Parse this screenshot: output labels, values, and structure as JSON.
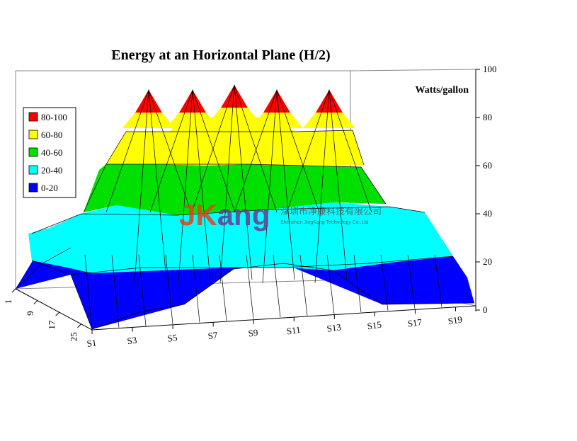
{
  "chart_data": {
    "type": "surface",
    "title": "Energy at an Horizontal Plane (H/2)",
    "zlabel": "Watts/gallon",
    "zlim": [
      0,
      100
    ],
    "z_ticks": [
      "0",
      "20",
      "40",
      "60",
      "80",
      "100"
    ],
    "x_ticks": [
      "S1",
      "S3",
      "S5",
      "S7",
      "S9",
      "S11",
      "S13",
      "S15",
      "S17",
      "S19"
    ],
    "y_ticks": [
      "1",
      "9",
      "17",
      "25"
    ],
    "legend": [
      {
        "label": "80-100",
        "color": "#ff0000"
      },
      {
        "label": "60-80",
        "color": "#ffff00"
      },
      {
        "label": "40-60",
        "color": "#00e000"
      },
      {
        "label": "20-40",
        "color": "#00ffff"
      },
      {
        "label": "0-20",
        "color": "#0000ff"
      }
    ],
    "peaks": [
      {
        "x": "S3",
        "value": 90
      },
      {
        "x": "S6",
        "value": 90
      },
      {
        "x": "S9",
        "value": 92
      },
      {
        "x": "S12",
        "value": 90
      },
      {
        "x": "S15",
        "value": 90
      }
    ],
    "legend_position": "left"
  },
  "watermark": {
    "logo": "JKang",
    "company_cn": "深圳市净康科技有限公司",
    "company_en": "Shenzhen JingKang Technology Co.,Ltd"
  }
}
